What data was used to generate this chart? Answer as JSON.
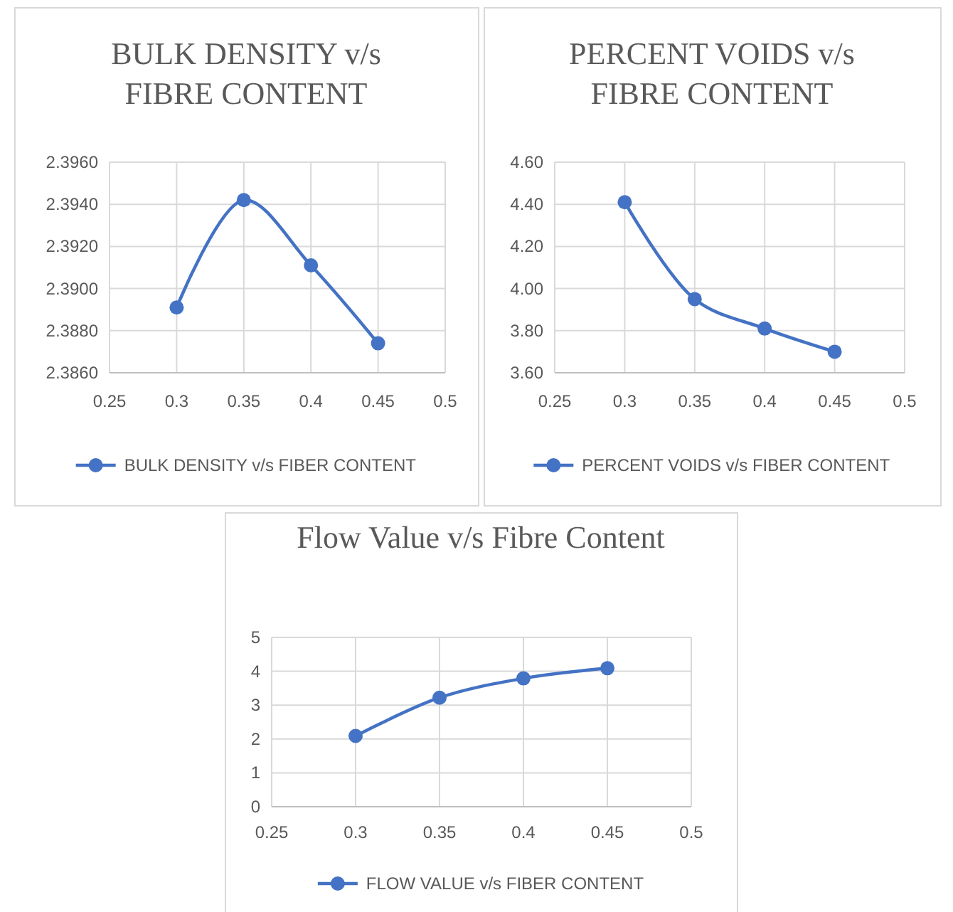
{
  "chart_data": [
    {
      "type": "line",
      "title": "BULK DENSITY v/s FIBRE CONTENT",
      "x": [
        0.3,
        0.35,
        0.4,
        0.45
      ],
      "series": [
        {
          "name": "BULK DENSITY v/s FIBER CONTENT",
          "color": "#4472c4",
          "values": [
            2.3891,
            2.3942,
            2.3911,
            2.3874
          ]
        }
      ],
      "xlim": [
        0.25,
        0.5
      ],
      "xticks": [
        0.25,
        0.3,
        0.35,
        0.4,
        0.45,
        0.5
      ],
      "ylim": [
        2.386,
        2.396
      ],
      "yticks": [
        {
          "value": 2.386,
          "label": "2.3860"
        },
        {
          "value": 2.388,
          "label": "2.3880"
        },
        {
          "value": 2.39,
          "label": "2.3900"
        },
        {
          "value": 2.392,
          "label": "2.3920"
        },
        {
          "value": 2.394,
          "label": "2.3940"
        },
        {
          "value": 2.396,
          "label": "2.3960"
        }
      ],
      "grid": true,
      "legend": "bottom",
      "marker": "circle",
      "line_style": "solid"
    },
    {
      "type": "line",
      "title": "PERCENT VOIDS v/s FIBRE CONTENT",
      "x": [
        0.3,
        0.35,
        0.4,
        0.45
      ],
      "series": [
        {
          "name": "PERCENT VOIDS v/s FIBER CONTENT",
          "color": "#4472c4",
          "values": [
            4.41,
            3.95,
            3.81,
            3.7
          ]
        }
      ],
      "xlim": [
        0.25,
        0.5
      ],
      "xticks": [
        0.25,
        0.3,
        0.35,
        0.4,
        0.45,
        0.5
      ],
      "ylim": [
        3.6,
        4.6
      ],
      "yticks": [
        {
          "value": 3.6,
          "label": "3.60"
        },
        {
          "value": 3.8,
          "label": "3.80"
        },
        {
          "value": 4,
          "label": "4.00"
        },
        {
          "value": 4.2,
          "label": "4.20"
        },
        {
          "value": 4.4,
          "label": "4.40"
        },
        {
          "value": 4.6,
          "label": "4.60"
        }
      ],
      "grid": true,
      "legend": "bottom",
      "marker": "circle",
      "line_style": "solid"
    },
    {
      "type": "line",
      "title": "Flow Value v/s Fibre Content",
      "x": [
        0.3,
        0.35,
        0.4,
        0.45
      ],
      "series": [
        {
          "name": "FLOW VALUE v/s FIBER CONTENT",
          "color": "#4472c4",
          "values": [
            2.09,
            3.22,
            3.79,
            4.09
          ]
        }
      ],
      "xlim": [
        0.25,
        0.5
      ],
      "xticks": [
        0.25,
        0.3,
        0.35,
        0.4,
        0.45,
        0.5
      ],
      "ylim": [
        0,
        5
      ],
      "yticks": [
        0,
        1,
        2,
        3,
        4,
        5
      ],
      "grid": true,
      "legend": "bottom",
      "marker": "circle",
      "line_style": "solid"
    }
  ]
}
